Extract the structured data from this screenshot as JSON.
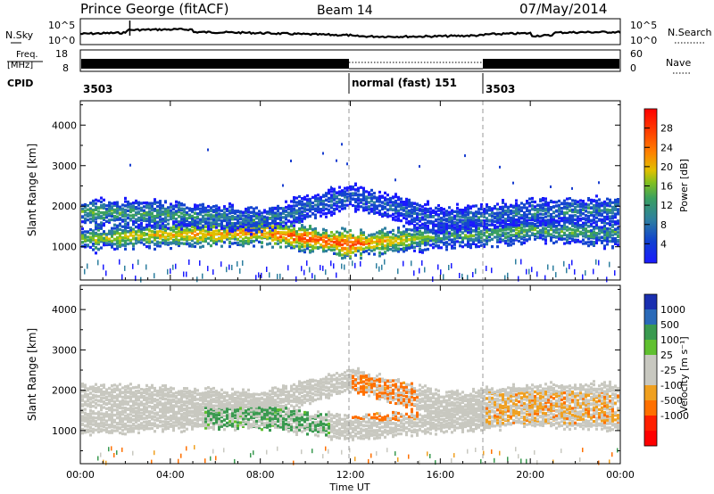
{
  "header": {
    "station": "Prince George (fitACF)",
    "beam": "Beam 14",
    "date": "07/May/2014"
  },
  "noise_panel": {
    "left_label": "N.Sky",
    "right_label": "N.Search",
    "left_ticks": [
      "10^5",
      "10^0"
    ],
    "right_ticks": [
      "10^5",
      "10^0"
    ]
  },
  "freq_panel": {
    "left_label_top": "Freq.",
    "left_label_unit": "[MHz]",
    "right_label": "Nave",
    "left_ticks": [
      "18",
      "8"
    ],
    "right_ticks": [
      "60",
      "0"
    ]
  },
  "cpid": {
    "label": "CPID",
    "segments": [
      {
        "name": "3503",
        "start_h": 0,
        "end_h": 12
      },
      {
        "name": "normal (fast) 151",
        "start_h": 12,
        "end_h": 18
      },
      {
        "name": "3503",
        "start_h": 18,
        "end_h": 24
      }
    ]
  },
  "x_axis": {
    "label": "Time UT",
    "ticks": [
      "00:00",
      "04:00",
      "08:00",
      "12:00",
      "16:00",
      "20:00",
      "00:00"
    ],
    "range_h": [
      0,
      24
    ]
  },
  "power_panel": {
    "ylabel": "Slant Range [km]",
    "yticks": [
      "1000",
      "2000",
      "3000",
      "4000"
    ],
    "colorbar_label": "Power [dB]",
    "colorbar_ticks": [
      "4",
      "8",
      "12",
      "16",
      "20",
      "24",
      "28"
    ]
  },
  "velocity_panel": {
    "ylabel": "Slant Range [km]",
    "yticks": [
      "1000",
      "2000",
      "3000",
      "4000"
    ],
    "colorbar_label": "Velocity [m s⁻¹]",
    "colorbar_ticks": [
      "1000",
      "500",
      "100",
      "25",
      "-25",
      "-100",
      "-500",
      "-1000"
    ]
  },
  "chart_data": [
    {
      "type": "heatmap",
      "title": "Prince George (fitACF) Beam 14 07/May/2014",
      "xlabel": "Time UT",
      "ylabel": "Slant Range [km]",
      "xlim": [
        0,
        24
      ],
      "ylim": [
        180,
        4600
      ],
      "value_label": "Power [dB]",
      "value_range": [
        0,
        32
      ],
      "bands": [
        {
          "t0": 0,
          "t1": 24,
          "center_km": [
            1250,
            1350,
            1400,
            1100,
            1300,
            1450,
            1350
          ],
          "width_km": 250,
          "power_db": [
            18,
            22,
            26,
            30,
            14,
            16,
            14
          ]
        },
        {
          "t0": 0,
          "t1": 24,
          "center_km": [
            1900,
            1850,
            1700,
            2300,
            1700,
            1900,
            1950
          ],
          "width_km": 250,
          "power_db": [
            16,
            14,
            12,
            10,
            10,
            12,
            12
          ]
        }
      ]
    },
    {
      "type": "heatmap",
      "title": "",
      "xlabel": "Time UT",
      "ylabel": "Slant Range [km]",
      "xlim": [
        0,
        24
      ],
      "ylim": [
        180,
        4600
      ],
      "value_label": "Velocity [m s⁻¹]",
      "value_range": [
        -1000,
        1000
      ],
      "features": [
        {
          "t0": 5.5,
          "t1": 11,
          "range_km": [
            800,
            1600
          ],
          "velocity": 150
        },
        {
          "t0": 12,
          "t1": 15,
          "range_km": [
            1300,
            2400
          ],
          "velocity": -150
        },
        {
          "t0": 18,
          "t1": 24,
          "range_km": [
            1200,
            2000
          ],
          "velocity": -60
        }
      ]
    }
  ]
}
